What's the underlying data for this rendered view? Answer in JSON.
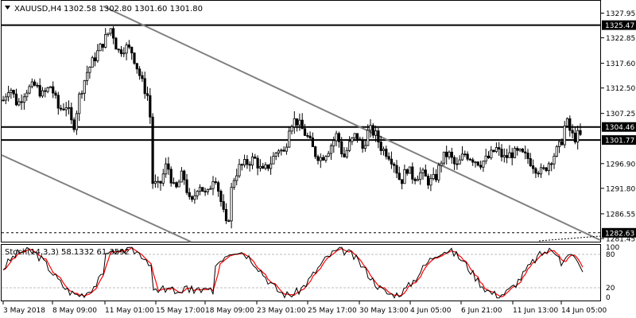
{
  "header": {
    "symbol_label": "XAUUSD,H4",
    "ohlc": "1302.58 1302.80 1301.60 1301.80"
  },
  "stoch": {
    "label": "Stoch(14,3,3) 58.1332 61.3592",
    "scale_labels": [
      "100",
      "80",
      "20",
      "0"
    ]
  },
  "chart_data": [
    {
      "type": "candlestick",
      "symbol": "XAUUSD",
      "timeframe": "H4",
      "ylim": [
        1281.45,
        1330
      ],
      "price_ticks": [
        1327.95,
        1322.85,
        1317.6,
        1312.5,
        1307.25,
        1296.9,
        1291.8,
        1286.55,
        1281.45
      ],
      "x_ticks": [
        "3 May 2018",
        "8 May 09:00",
        "11 May 01:00",
        "15 May 17:00",
        "18 May 09:00",
        "23 May 01:00",
        "25 May 17:00",
        "30 May 13:00",
        "4 Jun 05:00",
        "6 Jun 21:00",
        "11 Jun 13:00",
        "14 Jun 05:00"
      ],
      "levels": [
        {
          "label": "1325.47",
          "value": 1325.47,
          "style": "solid"
        },
        {
          "label": "1304.46",
          "value": 1304.46,
          "style": "solid"
        },
        {
          "label": "1301.77",
          "value": 1301.77,
          "style": "solid"
        },
        {
          "label": "1282.63",
          "value": 1282.63,
          "style": "dashed"
        }
      ],
      "trendlines": [
        {
          "from": {
            "time": "10 May 13:00",
            "price": 1330.0
          },
          "to": {
            "time": "14 Jun 21:00",
            "price": 1282.6
          }
        },
        {
          "from": {
            "time": "3 May 2018",
            "price": 1298.5
          },
          "to": {
            "time": "18 May 01:00",
            "price": 1281.0
          }
        }
      ],
      "last_price": 1301.8
    },
    {
      "type": "line",
      "indicator": "Stochastic",
      "title": "Stoch(14,3,3)",
      "main_value": 58.1332,
      "signal_value": 61.3592,
      "ylim": [
        0,
        100
      ],
      "levels": [
        20,
        80
      ],
      "series_colors": {
        "main": "#000000",
        "signal": "#ff0000"
      }
    }
  ],
  "colors": {
    "background": "#ffffff",
    "candles": "#000000",
    "trendline": "#7f7f7f",
    "stoch_main": "#000000",
    "stoch_signal": "#ff0000",
    "level_tag_bg": "#000000",
    "level_tag_text": "#ffffff"
  }
}
